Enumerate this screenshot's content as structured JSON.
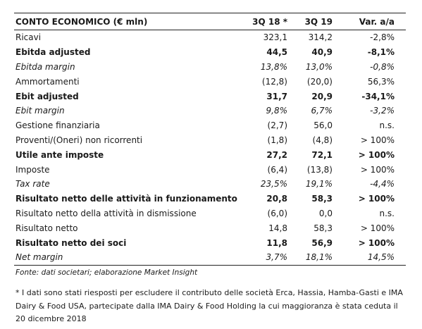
{
  "table": {
    "headers": [
      "CONTO ECONOMICO (€ mln)",
      "3Q 18 *",
      "3Q 19",
      "Var. a/a"
    ],
    "rows": [
      {
        "label": "Ricavi",
        "v1": "323,1",
        "v2": "314,2",
        "v3": "-2,8%",
        "style": "normal"
      },
      {
        "label": "Ebitda adjusted",
        "v1": "44,5",
        "v2": "40,9",
        "v3": "-8,1%",
        "style": "bold"
      },
      {
        "label": "Ebitda margin",
        "v1": "13,8%",
        "v2": "13,0%",
        "v3": "-0,8%",
        "style": "italic"
      },
      {
        "label": "Ammortamenti",
        "v1": "(12,8)",
        "v2": "(20,0)",
        "v3": "56,3%",
        "style": "normal"
      },
      {
        "label": "Ebit adjusted",
        "v1": "31,7",
        "v2": "20,9",
        "v3": "-34,1%",
        "style": "bold"
      },
      {
        "label": "Ebit margin",
        "v1": "9,8%",
        "v2": "6,7%",
        "v3": "-3,2%",
        "style": "italic"
      },
      {
        "label": "Gestione finanziaria",
        "v1": "(2,7)",
        "v2": "56,0",
        "v3": "n.s.",
        "style": "normal"
      },
      {
        "label": "Proventi/(Oneri) non ricorrenti",
        "v1": "(1,8)",
        "v2": "(4,8)",
        "v3": "> 100%",
        "style": "normal"
      },
      {
        "label": "Utile ante imposte",
        "v1": "27,2",
        "v2": "72,1",
        "v3": "> 100%",
        "style": "bold"
      },
      {
        "label": "Imposte",
        "v1": "(6,4)",
        "v2": "(13,8)",
        "v3": "> 100%",
        "style": "normal"
      },
      {
        "label": "Tax rate",
        "v1": "23,5%",
        "v2": "19,1%",
        "v3": "-4,4%",
        "style": "italic"
      },
      {
        "label": "Risultato netto delle attività in funzionamento",
        "v1": "20,8",
        "v2": "58,3",
        "v3": "> 100%",
        "style": "bold"
      },
      {
        "label": "Risultato netto della attività in dismissione",
        "v1": "(6,0)",
        "v2": "0,0",
        "v3": "n.s.",
        "style": "normal"
      },
      {
        "label": "Risultato netto",
        "v1": "14,8",
        "v2": "58,3",
        "v3": "> 100%",
        "style": "normal"
      },
      {
        "label": "Risultato netto dei soci",
        "v1": "11,8",
        "v2": "56,9",
        "v3": "> 100%",
        "style": "bold"
      },
      {
        "label": "Net margin",
        "v1": "3,7%",
        "v2": "18,1%",
        "v3": "14,5%",
        "style": "italic"
      }
    ]
  },
  "source": "Fonte: dati societari; elaborazione Market Insight",
  "note": "* I dati sono stati riesposti per escludere il contributo delle società Erca, Hassia, Hamba-Gasti e IMA Dairy & Food USA, partecipate dalla IMA Dairy & Food Holding la cui maggioranza è stata ceduta il 20 dicembre 2018"
}
